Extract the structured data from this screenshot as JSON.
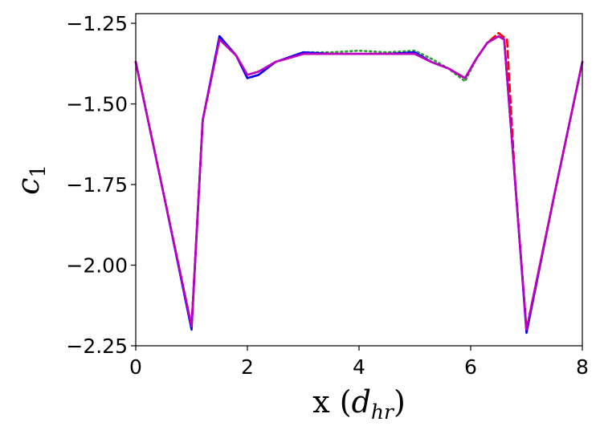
{
  "chart_data": {
    "type": "line",
    "xlabel": "x (",
    "xlabel_sub": "d",
    "xlabel_subsub": "hr",
    "xlabel_close": ")",
    "ylabel": "c",
    "ylabel_sub": "1",
    "xlim": [
      0,
      8
    ],
    "ylim": [
      -2.25,
      -1.22
    ],
    "y_inverted": true,
    "xticks": [
      0,
      2,
      4,
      6,
      8
    ],
    "xtick_labels": [
      "0",
      "2",
      "4",
      "6",
      "8"
    ],
    "yticks": [
      -1.25,
      -1.5,
      -1.75,
      -2.0,
      -2.25
    ],
    "ytick_labels": [
      "−1.25",
      "−1.50",
      "−1.75",
      "−2.00",
      "−2.25"
    ],
    "grid": false,
    "series": [
      {
        "color": "#2ca02c",
        "style": "dotted",
        "x": [
          0,
          0.5,
          1.0,
          1.2,
          1.5,
          1.8,
          2.0,
          2.2,
          2.5,
          3.0,
          3.5,
          4.0,
          4.5,
          5.0,
          5.3,
          5.6,
          5.9,
          6.1,
          6.3,
          6.5,
          6.6,
          6.8,
          7.0,
          7.5,
          8.0
        ],
        "y": [
          -1.37,
          -1.78,
          -2.19,
          -1.55,
          -1.3,
          -1.35,
          -1.41,
          -1.4,
          -1.37,
          -1.34,
          -1.34,
          -1.335,
          -1.34,
          -1.335,
          -1.36,
          -1.39,
          -1.43,
          -1.36,
          -1.31,
          -1.29,
          -1.3,
          -1.75,
          -2.2,
          -1.78,
          -1.37
        ]
      },
      {
        "color": "#ff0000",
        "style": "dashed",
        "x": [
          0,
          0.5,
          1.0,
          1.2,
          1.5,
          1.8,
          2.0,
          2.2,
          2.5,
          3.0,
          3.5,
          4.0,
          4.5,
          5.0,
          5.3,
          5.6,
          5.9,
          6.1,
          6.3,
          6.5,
          6.65,
          6.8,
          7.0,
          7.5,
          8.0
        ],
        "y": [
          -1.37,
          -1.78,
          -2.19,
          -1.55,
          -1.29,
          -1.35,
          -1.42,
          -1.41,
          -1.37,
          -1.345,
          -1.345,
          -1.345,
          -1.345,
          -1.345,
          -1.37,
          -1.39,
          -1.42,
          -1.36,
          -1.31,
          -1.28,
          -1.3,
          -1.75,
          -2.2,
          -1.78,
          -1.37
        ]
      },
      {
        "color": "#0000ff",
        "style": "solid",
        "x": [
          0,
          0.5,
          1.0,
          1.2,
          1.5,
          1.8,
          2.0,
          2.2,
          2.5,
          3.0,
          3.5,
          4.0,
          4.5,
          5.0,
          5.3,
          5.6,
          5.9,
          6.1,
          6.3,
          6.5,
          6.6,
          6.8,
          7.0,
          7.5,
          8.0
        ],
        "y": [
          -1.37,
          -1.78,
          -2.2,
          -1.55,
          -1.29,
          -1.35,
          -1.42,
          -1.41,
          -1.37,
          -1.34,
          -1.345,
          -1.345,
          -1.345,
          -1.34,
          -1.37,
          -1.39,
          -1.42,
          -1.36,
          -1.31,
          -1.29,
          -1.3,
          -1.75,
          -2.21,
          -1.78,
          -1.37
        ]
      },
      {
        "color": "#bf00bf",
        "style": "solid",
        "x": [
          0,
          0.5,
          1.0,
          1.2,
          1.5,
          1.8,
          2.0,
          2.2,
          2.5,
          3.0,
          3.5,
          4.0,
          4.5,
          5.0,
          5.3,
          5.6,
          5.9,
          6.1,
          6.3,
          6.5,
          6.6,
          6.8,
          7.0,
          7.5,
          8.0
        ],
        "y": [
          -1.37,
          -1.78,
          -2.19,
          -1.55,
          -1.3,
          -1.35,
          -1.41,
          -1.4,
          -1.37,
          -1.345,
          -1.345,
          -1.345,
          -1.345,
          -1.345,
          -1.37,
          -1.39,
          -1.42,
          -1.36,
          -1.31,
          -1.29,
          -1.3,
          -1.75,
          -2.2,
          -1.78,
          -1.37
        ]
      }
    ]
  }
}
